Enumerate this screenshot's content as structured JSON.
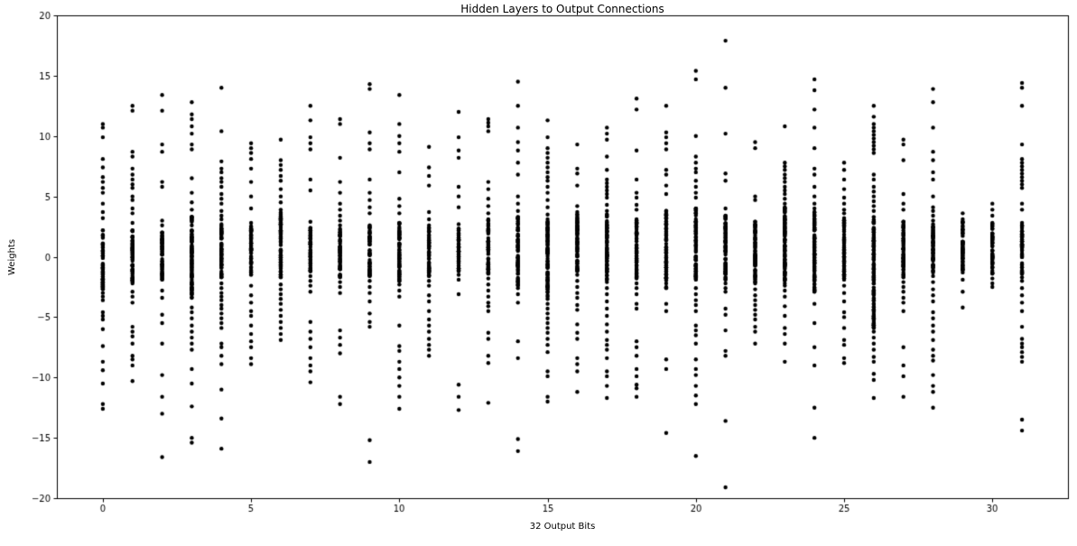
{
  "colors": {
    "background": "#ffffff",
    "axis": "#000000",
    "text": "#000000",
    "marker": "#000000"
  },
  "chart_data": {
    "type": "scatter",
    "title": "Hidden Layers to Output Connections",
    "xlabel": "32 Output Bits",
    "ylabel": "Weights",
    "xlim": [
      -1.55,
      32.55
    ],
    "ylim": [
      -20,
      20
    ],
    "xticks": [
      0,
      5,
      10,
      15,
      20,
      25,
      30
    ],
    "yticks": [
      -20,
      -15,
      -10,
      -5,
      0,
      5,
      10,
      15,
      20
    ],
    "grid": false,
    "legend": null,
    "marker_radius_px": 2.2,
    "description": "32 vertical point columns (one per output bit x=0..31); each has a dense solid band of weights near 0 (dense_band range) plus individually visible outlier points above and below.",
    "columns": [
      {
        "x": 0,
        "dense_band": [
          -2.7,
          2.2
        ],
        "points_above": [
          11.0,
          10.7,
          9.9,
          8.1,
          7.4,
          6.6,
          6.2,
          5.7,
          5.3,
          4.4,
          3.7,
          3.2
        ],
        "points_below": [
          -3.0,
          -3.3,
          -3.6,
          -4.6,
          -4.9,
          -5.2,
          -6.0,
          -7.4,
          -8.7,
          -9.4,
          -10.5,
          -12.2,
          -12.6
        ]
      },
      {
        "x": 1,
        "dense_band": [
          -2.2,
          2.2
        ],
        "points_above": [
          12.5,
          12.1,
          8.7,
          8.3,
          7.3,
          6.8,
          6.4,
          6.0,
          5.7,
          5.0,
          4.7,
          4.0,
          3.6,
          2.8
        ],
        "points_below": [
          -2.9,
          -3.3,
          -3.8,
          -5.8,
          -6.2,
          -6.6,
          -7.2,
          -8.2,
          -8.5,
          -9.0,
          -10.3
        ]
      },
      {
        "x": 2,
        "dense_band": [
          -1.9,
          2.0
        ],
        "points_above": [
          13.4,
          12.1,
          9.3,
          8.7,
          6.2,
          5.8,
          3.0,
          2.6
        ],
        "points_below": [
          -2.8,
          -3.4,
          -4.8,
          -5.5,
          -7.2,
          -9.8,
          -11.6,
          -13.0,
          -16.6
        ]
      },
      {
        "x": 3,
        "dense_band": [
          -3.4,
          3.3
        ],
        "points_above": [
          12.8,
          11.8,
          11.4,
          10.8,
          10.2,
          9.3,
          8.9,
          6.5,
          5.3,
          4.5,
          3.9
        ],
        "points_below": [
          -4.2,
          -4.6,
          -5.1,
          -5.7,
          -6.2,
          -6.7,
          -7.2,
          -7.7,
          -9.3,
          -10.5,
          -12.4,
          -15.0,
          -15.4
        ]
      },
      {
        "x": 4,
        "dense_band": [
          -1.7,
          2.7
        ],
        "points_above": [
          14.0,
          10.4,
          7.9,
          7.3,
          7.0,
          6.5,
          6.2,
          5.8,
          5.2,
          4.8,
          4.4,
          3.8,
          3.4,
          3.1
        ],
        "points_below": [
          -2.2,
          -2.6,
          -3.0,
          -3.3,
          -3.6,
          -4.0,
          -4.3,
          -4.7,
          -5.1,
          -5.5,
          -5.9,
          -7.2,
          -7.5,
          -8.2,
          -8.9,
          -11.0,
          -13.4,
          -15.9
        ]
      },
      {
        "x": 5,
        "dense_band": [
          -1.5,
          2.8
        ],
        "points_above": [
          9.4,
          9.0,
          8.6,
          8.1,
          7.3,
          6.2,
          5.0,
          4.0
        ],
        "points_below": [
          -2.4,
          -3.2,
          -3.8,
          -4.5,
          -4.9,
          -5.7,
          -6.4,
          -7.0,
          -7.5,
          -8.4,
          -8.9
        ]
      },
      {
        "x": 6,
        "dense_band": [
          -1.7,
          3.9
        ],
        "points_above": [
          9.7,
          8.0,
          7.6,
          7.2,
          6.7,
          6.3,
          5.6,
          5.0,
          4.5
        ],
        "points_below": [
          -2.3,
          -2.7,
          -3.1,
          -3.5,
          -3.9,
          -4.4,
          -4.9,
          -5.4,
          -5.9,
          -6.4,
          -6.9
        ]
      },
      {
        "x": 7,
        "dense_band": [
          -1.2,
          2.4
        ],
        "points_above": [
          12.5,
          11.3,
          9.9,
          9.4,
          8.9,
          6.4,
          5.5,
          2.9
        ],
        "points_below": [
          -1.6,
          -2.0,
          -2.4,
          -2.9,
          -5.4,
          -6.2,
          -6.8,
          -7.5,
          -8.4,
          -9.0,
          -9.5,
          -10.4
        ]
      },
      {
        "x": 8,
        "dense_band": [
          -1.7,
          2.3
        ],
        "points_above": [
          11.4,
          11.0,
          8.2,
          6.2,
          5.3,
          4.4,
          3.9,
          3.4,
          3.0,
          2.6
        ],
        "points_below": [
          -2.1,
          -2.5,
          -3.0,
          -6.1,
          -6.7,
          -7.3,
          -8.0,
          -11.6,
          -12.2
        ]
      },
      {
        "x": 9,
        "dense_band": [
          -1.6,
          2.6
        ],
        "points_above": [
          14.3,
          13.9,
          10.3,
          9.4,
          8.9,
          6.4,
          5.3,
          4.7,
          4.1,
          3.6
        ],
        "points_below": [
          -2.0,
          -2.5,
          -3.0,
          -3.7,
          -4.7,
          -5.4,
          -5.8,
          -15.2,
          -17.0
        ]
      },
      {
        "x": 10,
        "dense_band": [
          -2.0,
          2.8
        ],
        "points_above": [
          13.4,
          11.0,
          10.0,
          9.4,
          8.7,
          7.0,
          4.8,
          4.2,
          3.6
        ],
        "points_below": [
          -2.3,
          -2.8,
          -3.3,
          -5.7,
          -7.4,
          -7.8,
          -8.7,
          -9.3,
          -10.0,
          -10.7,
          -11.6,
          -12.6
        ]
      },
      {
        "x": 11,
        "dense_band": [
          -1.6,
          2.4
        ],
        "points_above": [
          9.1,
          7.4,
          6.7,
          5.9,
          3.7,
          3.1,
          2.6
        ],
        "points_below": [
          -2.0,
          -2.4,
          -3.2,
          -3.7,
          -4.5,
          -5.2,
          -5.7,
          -6.2,
          -6.8,
          -7.3,
          -7.7,
          -8.2
        ]
      },
      {
        "x": 12,
        "dense_band": [
          -1.2,
          2.7
        ],
        "points_above": [
          12.0,
          9.9,
          8.8,
          8.2,
          5.8,
          5.0,
          4.1
        ],
        "points_below": [
          -1.5,
          -1.9,
          -3.1,
          -10.6,
          -11.6,
          -12.7
        ]
      },
      {
        "x": 13,
        "dense_band": [
          -1.4,
          3.1
        ],
        "points_above": [
          11.4,
          11.1,
          10.8,
          10.4,
          6.2,
          5.6,
          4.8,
          4.2,
          3.6
        ],
        "points_below": [
          -1.8,
          -2.3,
          -2.8,
          -3.3,
          -3.8,
          -4.1,
          -4.5,
          -6.3,
          -6.8,
          -8.2,
          -8.8,
          -12.1
        ]
      },
      {
        "x": 14,
        "dense_band": [
          -2.4,
          3.3
        ],
        "points_above": [
          14.5,
          12.5,
          10.7,
          9.5,
          8.8,
          7.8,
          6.8,
          5.0,
          4.4,
          3.8
        ],
        "points_below": [
          -2.6,
          -3.1,
          -3.8,
          -7.0,
          -8.4,
          -15.1,
          -16.1
        ]
      },
      {
        "x": 15,
        "dense_band": [
          -3.3,
          2.9
        ],
        "points_above": [
          11.3,
          9.9,
          9.0,
          8.6,
          8.2,
          7.8,
          7.4,
          7.0,
          6.6,
          6.3,
          5.8,
          5.3,
          4.7,
          4.1,
          3.5,
          3.1
        ],
        "points_below": [
          -3.5,
          -3.9,
          -4.3,
          -4.7,
          -5.1,
          -5.5,
          -5.9,
          -6.3,
          -6.8,
          -7.3,
          -7.9,
          -9.5,
          -9.9,
          -11.6,
          -12.0
        ]
      },
      {
        "x": 16,
        "dense_band": [
          -1.2,
          3.7
        ],
        "points_above": [
          9.3,
          7.3,
          6.9,
          5.9,
          4.2
        ],
        "points_below": [
          -1.5,
          -2.0,
          -2.5,
          -3.0,
          -3.4,
          -4.0,
          -4.4,
          -5.6,
          -6.3,
          -6.8,
          -8.4,
          -8.9,
          -9.5,
          -11.2
        ]
      },
      {
        "x": 17,
        "dense_band": [
          -1.9,
          3.5
        ],
        "points_above": [
          10.7,
          10.2,
          9.7,
          8.3,
          7.2,
          6.4,
          6.1,
          5.8,
          5.5,
          5.2,
          4.9,
          4.3,
          3.8
        ],
        "points_below": [
          -2.1,
          -2.6,
          -3.1,
          -3.7,
          -4.3,
          -4.9,
          -5.6,
          -6.2,
          -6.9,
          -7.3,
          -7.7,
          -8.4,
          -9.5,
          -9.9,
          -10.7,
          -11.7
        ]
      },
      {
        "x": 18,
        "dense_band": [
          -1.7,
          3.1
        ],
        "points_above": [
          13.1,
          12.2,
          8.8,
          6.4,
          5.3,
          4.9,
          4.3,
          3.9
        ],
        "points_below": [
          -1.8,
          -2.2,
          -2.6,
          -3.1,
          -3.9,
          -4.3,
          -7.0,
          -7.5,
          -8.2,
          -9.3,
          -9.9,
          -10.6,
          -10.9,
          -11.6
        ]
      },
      {
        "x": 19,
        "dense_band": [
          -2.6,
          3.8
        ],
        "points_above": [
          12.5,
          10.3,
          9.9,
          9.4,
          8.9,
          7.2,
          6.8,
          5.9,
          5.2
        ],
        "points_below": [
          -3.9,
          -4.5,
          -8.5,
          -9.3,
          -14.6
        ]
      },
      {
        "x": 20,
        "dense_band": [
          -1.9,
          4.0
        ],
        "points_above": [
          15.4,
          14.7,
          10.0,
          8.3,
          7.8,
          7.3,
          7.0,
          6.3,
          5.8,
          5.3,
          4.9
        ],
        "points_below": [
          -2.6,
          -3.1,
          -3.6,
          -4.0,
          -4.5,
          -5.7,
          -6.1,
          -6.5,
          -7.2,
          -8.5,
          -9.3,
          -9.8,
          -10.7,
          -11.5,
          -12.2,
          -16.5
        ]
      },
      {
        "x": 21,
        "dense_band": [
          -1.9,
          3.4
        ],
        "points_above": [
          17.9,
          14.0,
          10.2,
          6.9,
          6.3,
          4.0,
          3.3
        ],
        "points_below": [
          -2.2,
          -2.6,
          -2.9,
          -4.3,
          -4.8,
          -6.1,
          -7.8,
          -8.2,
          -13.6,
          -19.1
        ]
      },
      {
        "x": 22,
        "dense_band": [
          -2.1,
          2.9
        ],
        "points_above": [
          9.5,
          9.0,
          5.0,
          4.7
        ],
        "points_below": [
          -2.2,
          -2.7,
          -3.2,
          -3.6,
          -4.0,
          -4.4,
          -4.8,
          -5.2,
          -5.8,
          -6.2,
          -7.2
        ]
      },
      {
        "x": 23,
        "dense_band": [
          -2.2,
          4.1
        ],
        "points_above": [
          10.8,
          7.8,
          7.5,
          7.2,
          6.8,
          6.5,
          6.2,
          5.8,
          5.5,
          5.2,
          4.8,
          4.4
        ],
        "points_below": [
          -2.4,
          -2.8,
          -3.3,
          -4.1,
          -4.9,
          -5.9,
          -6.4,
          -7.2,
          -8.7
        ]
      },
      {
        "x": 24,
        "dense_band": [
          -2.9,
          3.7
        ],
        "points_above": [
          14.7,
          13.8,
          12.2,
          10.7,
          9.0,
          7.3,
          6.8,
          5.8,
          5.0,
          4.4,
          4.0
        ],
        "points_below": [
          -3.9,
          -5.5,
          -7.5,
          -9.0,
          -12.5,
          -15.0
        ]
      },
      {
        "x": 25,
        "dense_band": [
          -1.8,
          3.2
        ],
        "points_above": [
          7.8,
          7.2,
          6.4,
          5.6,
          4.9,
          4.4,
          3.9,
          3.6
        ],
        "points_below": [
          -1.9,
          -2.4,
          -3.0,
          -3.7,
          -4.6,
          -5.0,
          -5.9,
          -6.9,
          -7.3,
          -8.4,
          -8.8
        ]
      },
      {
        "x": 26,
        "dense_band": [
          -5.9,
          3.3
        ],
        "points_above": [
          12.5,
          11.6,
          11.0,
          10.7,
          10.4,
          10.1,
          9.8,
          9.5,
          9.2,
          8.9,
          8.6,
          6.8,
          6.4,
          5.8,
          5.4,
          5.0,
          4.6,
          4.2,
          3.8
        ],
        "points_below": [
          -6.2,
          -6.7,
          -7.2,
          -7.7,
          -8.3,
          -8.7,
          -9.7,
          -10.2,
          -11.7
        ]
      },
      {
        "x": 27,
        "dense_band": [
          -1.6,
          2.9
        ],
        "points_above": [
          9.7,
          9.3,
          8.0,
          5.2,
          4.4,
          3.9
        ],
        "points_below": [
          -1.7,
          -2.1,
          -2.5,
          -2.9,
          -3.4,
          -3.8,
          -4.5,
          -7.5,
          -9.0,
          -9.9,
          -11.6
        ]
      },
      {
        "x": 28,
        "dense_band": [
          -1.3,
          2.7
        ],
        "points_above": [
          13.9,
          12.8,
          10.7,
          8.7,
          8.0,
          7.0,
          6.4,
          5.0,
          4.1,
          3.8,
          3.4,
          3.0
        ],
        "points_below": [
          -1.6,
          -2.1,
          -2.7,
          -3.2,
          -3.7,
          -4.6,
          -5.1,
          -5.7,
          -6.2,
          -6.9,
          -7.7,
          -8.2,
          -8.6,
          -9.8,
          -10.7,
          -11.2,
          -12.5
        ]
      },
      {
        "x": 29,
        "dense_band": [
          -1.3,
          2.9
        ],
        "points_above": [
          3.6,
          3.1
        ],
        "points_below": [
          -1.9,
          -2.9,
          -4.2
        ]
      },
      {
        "x": 30,
        "dense_band": [
          -1.4,
          2.8
        ],
        "points_above": [
          4.4,
          3.9,
          3.4
        ],
        "points_below": [
          -1.8,
          -2.2,
          -2.5
        ]
      },
      {
        "x": 31,
        "dense_band": [
          -1.4,
          2.6
        ],
        "points_above": [
          14.4,
          14.0,
          12.5,
          9.3,
          8.1,
          7.8,
          7.5,
          7.2,
          6.9,
          6.6,
          6.3,
          6.0,
          5.7,
          4.4,
          3.9,
          2.8
        ],
        "points_below": [
          -1.7,
          -2.0,
          -2.6,
          -3.2,
          -3.8,
          -4.5,
          -5.8,
          -6.8,
          -7.2,
          -7.5,
          -7.9,
          -8.3,
          -8.7,
          -13.5,
          -14.4
        ]
      }
    ]
  }
}
